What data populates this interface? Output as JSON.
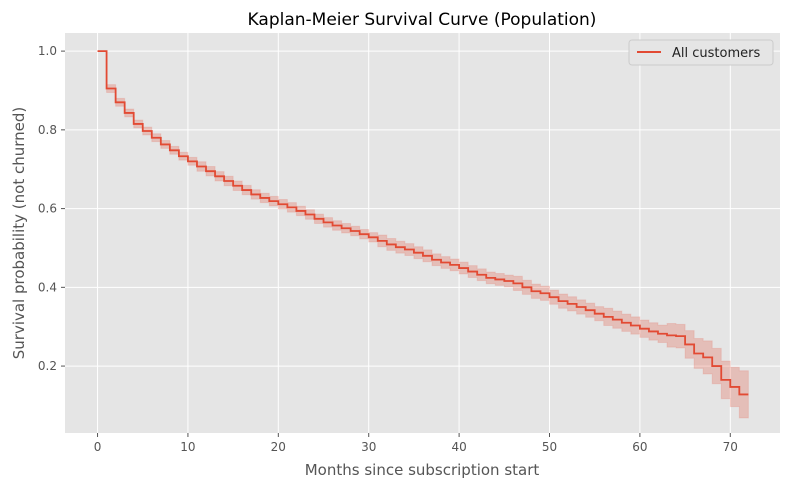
{
  "chart_data": {
    "type": "line",
    "style": "step-post with confidence band",
    "title": "Kaplan-Meier Survival Curve (Population)",
    "xlabel": "Months since subscription start",
    "ylabel": "Survival probability (not churned)",
    "xlim": [
      -3.6,
      75.5
    ],
    "ylim": [
      0.03,
      1.046
    ],
    "xticks": [
      0,
      10,
      20,
      30,
      40,
      50,
      60,
      70
    ],
    "yticks": [
      0.2,
      0.4,
      0.6,
      0.8,
      1.0
    ],
    "ytick_labels": [
      "0.2",
      "0.4",
      "0.6",
      "0.8",
      "1.0"
    ],
    "grid": true,
    "legend_placement": "top-right",
    "colors": {
      "line": "#e24a33",
      "band": "#e24a33",
      "background": "#e5e5e5",
      "grid": "#ffffff"
    },
    "series": [
      {
        "name": "All customers",
        "x": [
          0,
          1,
          2,
          3,
          4,
          5,
          6,
          7,
          8,
          9,
          10,
          11,
          12,
          13,
          14,
          15,
          16,
          17,
          18,
          19,
          20,
          21,
          22,
          23,
          24,
          25,
          26,
          27,
          28,
          29,
          30,
          31,
          32,
          33,
          34,
          35,
          36,
          37,
          38,
          39,
          40,
          41,
          42,
          43,
          44,
          45,
          46,
          47,
          48,
          49,
          50,
          51,
          52,
          53,
          54,
          55,
          56,
          57,
          58,
          59,
          60,
          61,
          62,
          63,
          64,
          65,
          66,
          67,
          68,
          69,
          70,
          71,
          72
        ],
        "survival": [
          1.0,
          0.905,
          0.87,
          0.843,
          0.815,
          0.797,
          0.78,
          0.763,
          0.748,
          0.733,
          0.72,
          0.707,
          0.695,
          0.682,
          0.67,
          0.658,
          0.647,
          0.636,
          0.627,
          0.619,
          0.611,
          0.603,
          0.594,
          0.585,
          0.574,
          0.565,
          0.557,
          0.55,
          0.543,
          0.535,
          0.527,
          0.518,
          0.509,
          0.502,
          0.496,
          0.488,
          0.48,
          0.47,
          0.463,
          0.457,
          0.449,
          0.44,
          0.432,
          0.424,
          0.42,
          0.416,
          0.41,
          0.4,
          0.39,
          0.385,
          0.375,
          0.365,
          0.358,
          0.35,
          0.342,
          0.333,
          0.325,
          0.318,
          0.31,
          0.303,
          0.295,
          0.288,
          0.282,
          0.278,
          0.276,
          0.255,
          0.232,
          0.222,
          0.2,
          0.165,
          0.147,
          0.128,
          0.128
        ],
        "ci_lower": [
          1.0,
          0.895,
          0.86,
          0.833,
          0.805,
          0.787,
          0.77,
          0.753,
          0.738,
          0.723,
          0.71,
          0.695,
          0.683,
          0.67,
          0.658,
          0.646,
          0.635,
          0.624,
          0.615,
          0.607,
          0.599,
          0.591,
          0.582,
          0.573,
          0.562,
          0.553,
          0.545,
          0.538,
          0.531,
          0.523,
          0.515,
          0.503,
          0.494,
          0.487,
          0.481,
          0.473,
          0.465,
          0.455,
          0.448,
          0.442,
          0.434,
          0.425,
          0.417,
          0.409,
          0.405,
          0.401,
          0.392,
          0.382,
          0.372,
          0.367,
          0.357,
          0.347,
          0.34,
          0.332,
          0.324,
          0.315,
          0.303,
          0.296,
          0.288,
          0.281,
          0.273,
          0.266,
          0.26,
          0.248,
          0.246,
          0.22,
          0.194,
          0.18,
          0.155,
          0.117,
          0.097,
          0.068,
          0.068
        ],
        "ci_upper": [
          1.0,
          0.915,
          0.88,
          0.853,
          0.825,
          0.807,
          0.79,
          0.773,
          0.758,
          0.743,
          0.73,
          0.719,
          0.707,
          0.694,
          0.682,
          0.67,
          0.659,
          0.648,
          0.639,
          0.631,
          0.623,
          0.615,
          0.606,
          0.597,
          0.586,
          0.577,
          0.569,
          0.562,
          0.555,
          0.547,
          0.539,
          0.533,
          0.524,
          0.517,
          0.511,
          0.503,
          0.495,
          0.485,
          0.478,
          0.472,
          0.464,
          0.455,
          0.447,
          0.439,
          0.435,
          0.431,
          0.428,
          0.418,
          0.408,
          0.403,
          0.393,
          0.383,
          0.376,
          0.368,
          0.36,
          0.351,
          0.347,
          0.34,
          0.332,
          0.325,
          0.317,
          0.31,
          0.304,
          0.308,
          0.306,
          0.29,
          0.27,
          0.264,
          0.245,
          0.213,
          0.197,
          0.188,
          0.188
        ]
      }
    ]
  }
}
